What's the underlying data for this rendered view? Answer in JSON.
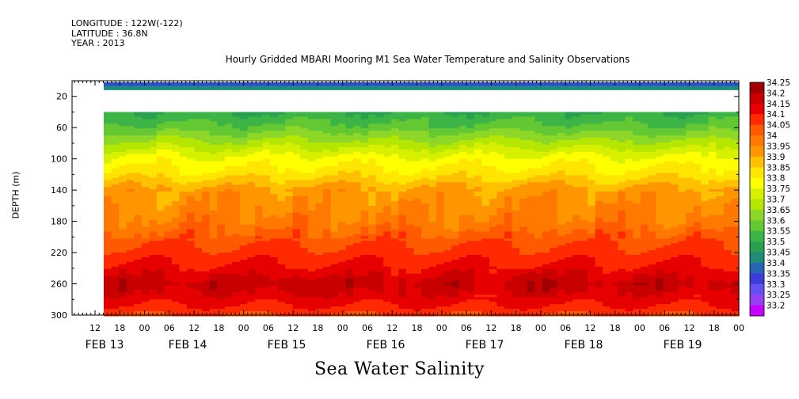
{
  "meta": {
    "longitude": "LONGITUDE : 122W(-122)",
    "latitude": "LATITUDE : 36.8N",
    "year": "YEAR : 2013"
  },
  "title": "Hourly Gridded MBARI Mooring M1 Sea Water Temperature and Salinity Observations",
  "variable": "Sea Water Salinity",
  "chart_data": {
    "type": "heatmap",
    "title": "Hourly Gridded MBARI Mooring M1 Sea Water Temperature and Salinity Observations",
    "xlabel": "",
    "ylabel": "DEPTH (m)",
    "variable": "Sea Water Salinity",
    "y_reversed": true,
    "ylim": [
      300,
      0
    ],
    "y_ticks": [
      20,
      60,
      100,
      140,
      180,
      220,
      260,
      300
    ],
    "x_hour_ticks": [
      "12",
      "18",
      "00",
      "06",
      "12",
      "18",
      "00",
      "06",
      "12",
      "18",
      "00",
      "06",
      "12",
      "18",
      "00",
      "06",
      "12",
      "18",
      "00",
      "06",
      "12",
      "18",
      "00",
      "06",
      "12",
      "18",
      "00"
    ],
    "x_day_labels": [
      "FEB 13",
      "FEB 14",
      "FEB 15",
      "FEB 16",
      "FEB 17",
      "FEB 18",
      "FEB 19"
    ],
    "colorbar_levels": [
      "34.25",
      "34.2",
      "34.15",
      "34.1",
      "34.05",
      "34",
      "33.95",
      "33.9",
      "33.85",
      "33.8",
      "33.75",
      "33.7",
      "33.65",
      "33.6",
      "33.55",
      "33.5",
      "33.45",
      "33.4",
      "33.35",
      "33.3",
      "33.25",
      "33.2"
    ],
    "colorbar_colors": [
      "#a00000",
      "#c80000",
      "#e60000",
      "#ff2a00",
      "#ff5a00",
      "#ff7800",
      "#ff9600",
      "#ffc000",
      "#ffe600",
      "#ffff00",
      "#d7f000",
      "#b4e600",
      "#8cd728",
      "#64c832",
      "#3cb446",
      "#28a050",
      "#1e8c78",
      "#2864b4",
      "#3c3cdc",
      "#6450f0",
      "#9640f5",
      "#c800ff"
    ],
    "depth_profile": [
      {
        "depth": 10,
        "salinity": 33.45,
        "note": ""
      },
      {
        "depth": 40,
        "salinity": 33.55
      },
      {
        "depth": 60,
        "salinity": 33.62
      },
      {
        "depth": 80,
        "salinity": 33.72
      },
      {
        "depth": 100,
        "salinity": 33.82
      },
      {
        "depth": 120,
        "salinity": 33.88
      },
      {
        "depth": 140,
        "salinity": 33.97
      },
      {
        "depth": 180,
        "salinity": 34.02
      },
      {
        "depth": 210,
        "salinity": 34.1
      },
      {
        "depth": 240,
        "salinity": 34.16
      },
      {
        "depth": 260,
        "salinity": 34.22
      },
      {
        "depth": 285,
        "salinity": 34.16
      },
      {
        "depth": 300,
        "salinity": 34.1
      }
    ]
  }
}
